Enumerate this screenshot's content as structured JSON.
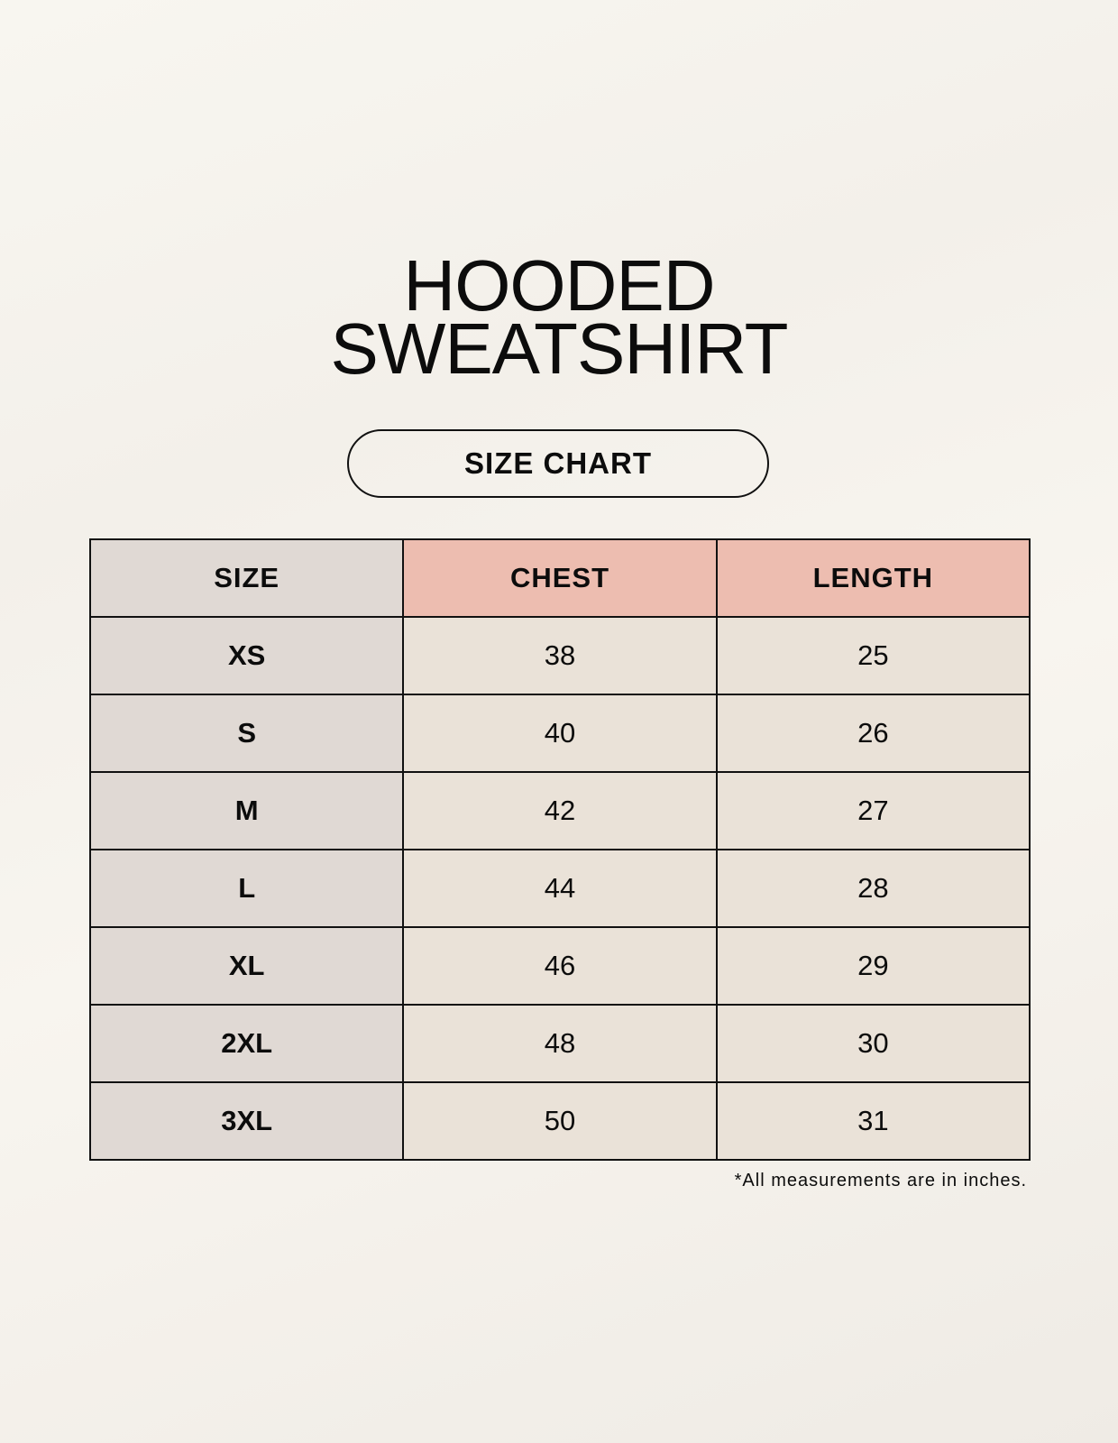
{
  "title": {
    "line1": "HOODED",
    "line2": "SWEATSHIRT"
  },
  "badge": "SIZE CHART",
  "table": {
    "headers": [
      "SIZE",
      "CHEST",
      "LENGTH"
    ],
    "rows": [
      [
        "XS",
        "38",
        "25"
      ],
      [
        "S",
        "40",
        "26"
      ],
      [
        "M",
        "42",
        "27"
      ],
      [
        "L",
        "44",
        "28"
      ],
      [
        "XL",
        "46",
        "29"
      ],
      [
        "2XL",
        "48",
        "30"
      ],
      [
        "3XL",
        "50",
        "31"
      ]
    ]
  },
  "footnote": "*All measurements are in inches.",
  "colors": {
    "size_column": "#e0d9d4",
    "header_accent": "#edbdb0",
    "value_cells": "#eae2d8"
  }
}
